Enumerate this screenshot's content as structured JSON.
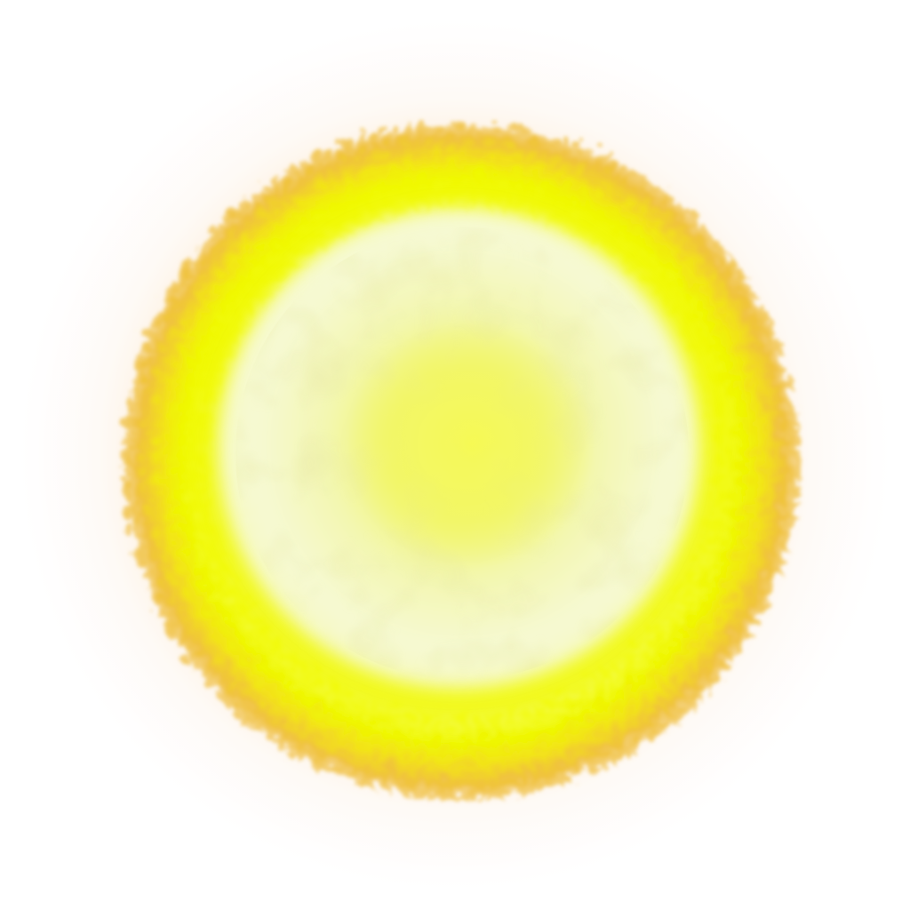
{
  "image": {
    "subject": "glowing-sun-orb",
    "background_color": "#ffffff",
    "colors": {
      "core_center": "#f2f760",
      "core_mottle": "#e4e77a",
      "core_pale": "#f5f8d6",
      "core_white": "#f8fbe4",
      "inner_ring": "#f4fb1e",
      "bright_ring": "#eff700",
      "outer_ring": "#f3d21a",
      "corona": "#f0b63c",
      "halo": "#fbe6c8",
      "halo_faint": "#fdf1ec"
    }
  }
}
